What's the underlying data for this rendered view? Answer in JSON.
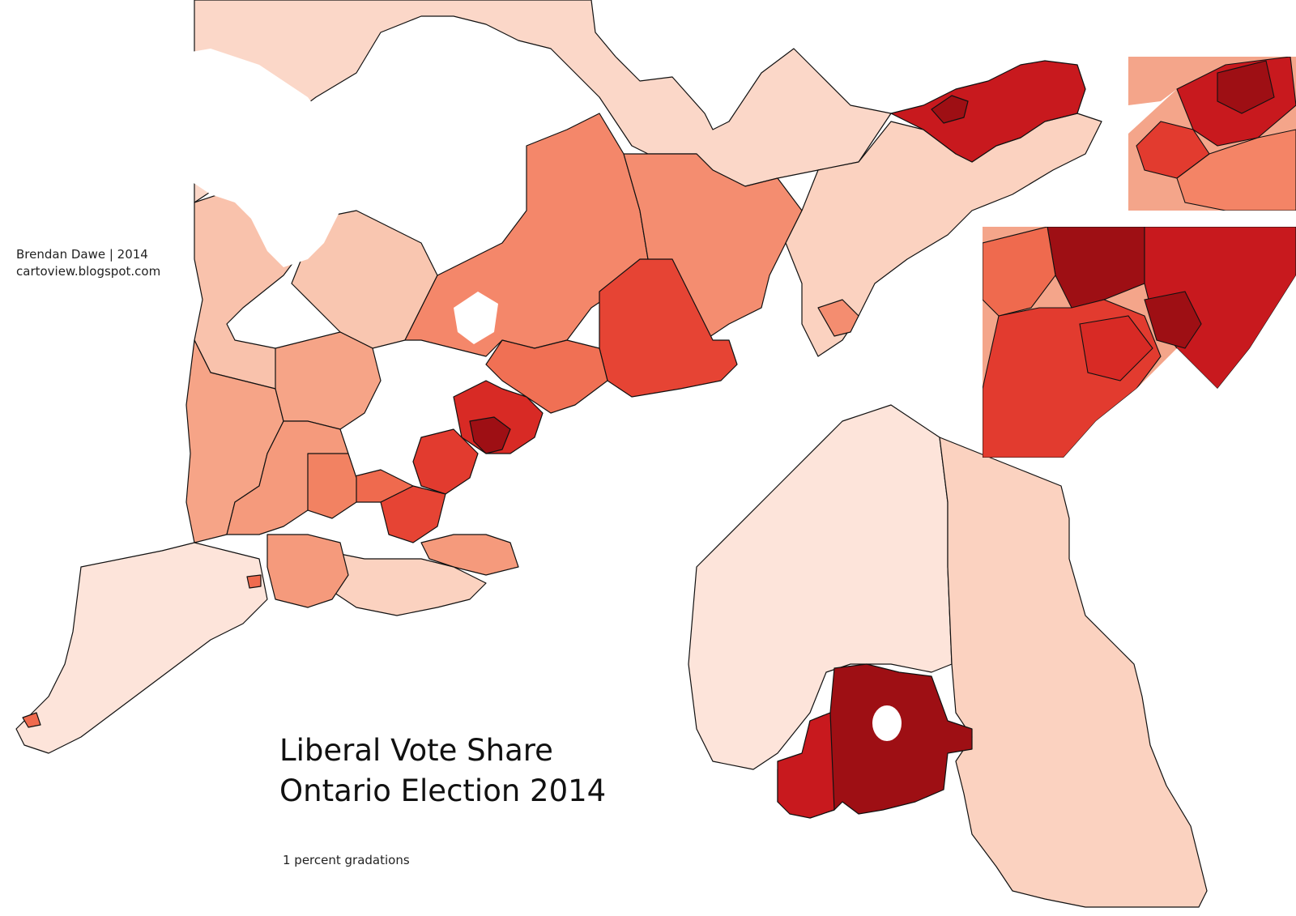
{
  "credit": {
    "author_line": "Brendan Dawe | 2014",
    "url_line": "cartoview.blogspot.com"
  },
  "title": {
    "line1": "Liberal Vote Share",
    "line2": "Ontario Election 2014"
  },
  "note": "1 percent gradations",
  "map": {
    "colors": {
      "lowest": "#fde8df",
      "light": "#fbd2c0",
      "medium_light": "#f7ac90",
      "medium": "#f48466",
      "medium_dark": "#ef6a4e",
      "dark": "#e23b2f",
      "darker": "#c8191e",
      "darkest": "#9e0f14",
      "water": "#ffffff",
      "boundary": "#111111"
    }
  }
}
